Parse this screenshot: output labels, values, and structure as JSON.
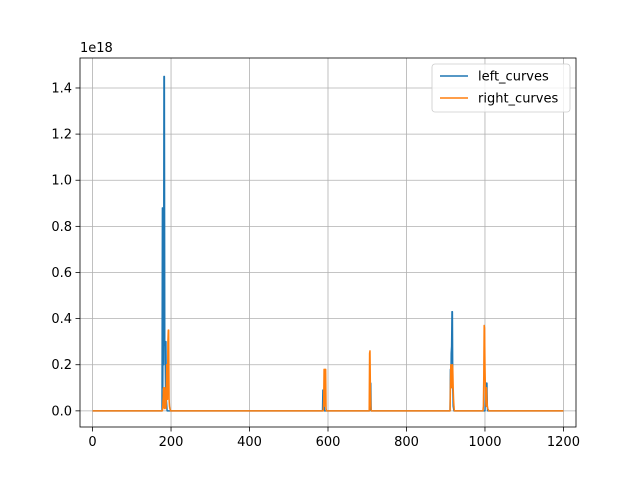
{
  "chart_data": {
    "type": "line",
    "title": "",
    "xlabel": "",
    "ylabel": "",
    "y_offset_label": "1e18",
    "xlim": [
      -32,
      1232
    ],
    "ylim": [
      -0.07,
      1.53
    ],
    "xticks": [
      0,
      200,
      400,
      600,
      800,
      1000,
      1200
    ],
    "xtick_labels": [
      "0",
      "200",
      "400",
      "600",
      "800",
      "1000",
      "1200"
    ],
    "yticks": [
      0.0,
      0.2,
      0.4,
      0.6,
      0.8,
      1.0,
      1.2,
      1.4
    ],
    "ytick_labels": [
      "0.0",
      "0.2",
      "0.4",
      "0.6",
      "0.8",
      "1.0",
      "1.2",
      "1.4"
    ],
    "grid": true,
    "legend_position": "top-right",
    "series": [
      {
        "name": "left_curves",
        "color": "#1f77b4",
        "x": [
          0,
          170,
          177,
          178,
          179,
          180,
          181,
          182,
          183,
          184,
          185,
          186,
          187,
          188,
          190,
          195,
          200,
          586,
          587,
          588,
          589,
          590,
          591,
          706,
          707,
          708,
          709,
          710,
          911,
          912,
          913,
          914,
          915,
          916,
          917,
          918,
          919,
          920,
          921,
          1000,
          1001,
          1002,
          1003,
          1004,
          1005,
          1006,
          1007,
          1008,
          1010,
          1200
        ],
        "y": [
          0,
          0,
          0,
          0.88,
          0.1,
          0.6,
          0.2,
          1.45,
          1.45,
          0.3,
          0.28,
          0.1,
          0.3,
          0.05,
          0,
          0,
          0,
          0,
          0.09,
          0.02,
          0.01,
          0.09,
          0,
          0,
          0.12,
          0.05,
          0.12,
          0,
          0,
          0.18,
          0.1,
          0.25,
          0.28,
          0.43,
          0.43,
          0.1,
          0.02,
          0.01,
          0,
          0,
          0.05,
          0.12,
          0.12,
          0.1,
          0.12,
          0.02,
          0,
          0,
          0,
          0
        ]
      },
      {
        "name": "right_curves",
        "color": "#ff7f0e",
        "x": [
          0,
          178,
          179,
          180,
          181,
          182,
          183,
          184,
          185,
          186,
          187,
          188,
          189,
          190,
          191,
          192,
          193,
          194,
          195,
          196,
          197,
          198,
          199,
          200,
          201,
          205,
          588,
          589,
          590,
          591,
          592,
          593,
          594,
          595,
          596,
          705,
          706,
          707,
          708,
          709,
          710,
          911,
          912,
          913,
          914,
          915,
          916,
          917,
          918,
          919,
          920,
          921,
          922,
          995,
          996,
          997,
          998,
          999,
          1000,
          1001,
          1002,
          1003,
          1004,
          1005,
          1006,
          1007,
          1010,
          1200
        ],
        "y": [
          0,
          0,
          0.02,
          0.06,
          0.1,
          0.02,
          0.01,
          0.1,
          0.05,
          0.03,
          0.01,
          0.08,
          0.2,
          0.06,
          0.05,
          0.3,
          0.35,
          0.35,
          0.05,
          0.02,
          0.01,
          0.005,
          0,
          0,
          0,
          0,
          0,
          0.04,
          0.18,
          0.02,
          0.18,
          0.17,
          0.18,
          0.01,
          0,
          0,
          0.25,
          0.26,
          0.1,
          0.02,
          0,
          0,
          0.1,
          0.2,
          0.19,
          0.18,
          0.1,
          0.2,
          0.18,
          0.1,
          0.05,
          0.02,
          0,
          0,
          0.02,
          0.15,
          0.37,
          0.36,
          0.2,
          0.1,
          0.05,
          0.02,
          0.1,
          0.05,
          0.02,
          0.01,
          0,
          0
        ]
      }
    ]
  }
}
